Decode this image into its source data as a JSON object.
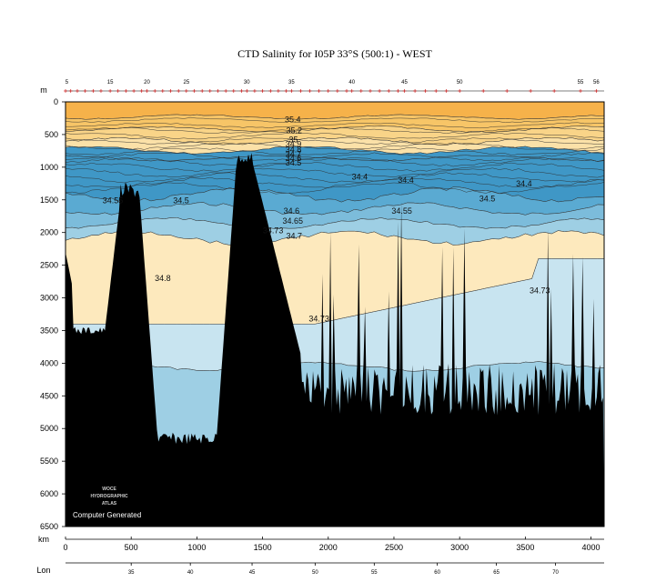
{
  "chart_data": {
    "type": "contour_section",
    "title": "CTD Salinity for I05P 33°S (500:1) - WEST",
    "x_axis": {
      "label": "km",
      "range": [
        0,
        4100
      ],
      "ticks": [
        0,
        500,
        1000,
        1500,
        2000,
        2500,
        3000,
        3500,
        4000
      ]
    },
    "y_axis": {
      "label": "m",
      "range": [
        0,
        6500
      ],
      "ticks": [
        0,
        500,
        1000,
        1500,
        2000,
        2500,
        3000,
        3500,
        4000,
        4500,
        5000,
        5500,
        6000,
        6500
      ],
      "reversed": true
    },
    "lon_axis": {
      "label": "Lon",
      "ticks": [
        {
          "label": "35",
          "km": 500
        },
        {
          "label": "40",
          "km": 950
        },
        {
          "label": "45",
          "km": 1420
        },
        {
          "label": "50",
          "km": 1900
        },
        {
          "label": "55",
          "km": 2350
        },
        {
          "label": "60",
          "km": 2830
        },
        {
          "label": "65",
          "km": 3280
        },
        {
          "label": "70",
          "km": 3730
        }
      ]
    },
    "station_labels": [
      {
        "label": "5",
        "km": 10
      },
      {
        "label": "15",
        "km": 340
      },
      {
        "label": "20",
        "km": 620
      },
      {
        "label": "25",
        "km": 920
      },
      {
        "label": "30",
        "km": 1380
      },
      {
        "label": "35",
        "km": 1720
      },
      {
        "label": "40",
        "km": 2180
      },
      {
        "label": "45",
        "km": 2580
      },
      {
        "label": "50",
        "km": 3000
      },
      {
        "label": "55",
        "km": 3920
      },
      {
        "label": "56",
        "km": 4040
      }
    ],
    "station_km": [
      0,
      40,
      90,
      150,
      210,
      270,
      340,
      400,
      460,
      520,
      580,
      620,
      680,
      740,
      800,
      860,
      920,
      980,
      1040,
      1100,
      1160,
      1220,
      1280,
      1340,
      1380,
      1440,
      1500,
      1560,
      1620,
      1680,
      1720,
      1790,
      1860,
      1930,
      2000,
      2070,
      2140,
      2180,
      2250,
      2320,
      2390,
      2460,
      2530,
      2580,
      2660,
      2740,
      2820,
      2900,
      3000,
      3180,
      3360,
      3540,
      3720,
      3920,
      4040
    ],
    "salinity_levels": [
      34.4,
      34.5,
      34.55,
      34.6,
      34.65,
      34.7,
      34.73,
      34.8,
      35.0,
      35.2,
      35.4
    ],
    "contour_labels": [
      {
        "text": "35.4",
        "km": 1730,
        "depth": 270
      },
      {
        "text": "35.2",
        "km": 1740,
        "depth": 440
      },
      {
        "text": "35",
        "km": 1735,
        "depth": 580
      },
      {
        "text": "34.9",
        "km": 1735,
        "depth": 650
      },
      {
        "text": "34.8",
        "km": 1735,
        "depth": 730
      },
      {
        "text": "34.7",
        "km": 1735,
        "depth": 800
      },
      {
        "text": "34.6",
        "km": 1735,
        "depth": 860
      },
      {
        "text": "34.5",
        "km": 1735,
        "depth": 930
      },
      {
        "text": "34.4",
        "km": 2240,
        "depth": 1150
      },
      {
        "text": "34.4",
        "km": 2590,
        "depth": 1200
      },
      {
        "text": "34.4",
        "km": 3490,
        "depth": 1250
      },
      {
        "text": "34.55",
        "km": 360,
        "depth": 1510
      },
      {
        "text": "34.5",
        "km": 880,
        "depth": 1510
      },
      {
        "text": "34.5",
        "km": 3210,
        "depth": 1480
      },
      {
        "text": "34.6",
        "km": 1720,
        "depth": 1670
      },
      {
        "text": "34.65",
        "km": 1730,
        "depth": 1820
      },
      {
        "text": "34.55",
        "km": 2560,
        "depth": 1670
      },
      {
        "text": "34.73",
        "km": 1580,
        "depth": 1970
      },
      {
        "text": "34.7",
        "km": 1740,
        "depth": 2050
      },
      {
        "text": "34.8",
        "km": 740,
        "depth": 2700
      },
      {
        "text": "34.73",
        "km": 3610,
        "depth": 2890
      },
      {
        "text": "34.73",
        "km": 1930,
        "depth": 3320
      }
    ],
    "credit": "Computer Generated",
    "logo_text": [
      "WOCE",
      "HYDROGRAPHIC",
      "ATLAS"
    ],
    "colors": {
      "s35_4": "#f6b24a",
      "s35_2": "#f7c567",
      "s35_0": "#f9d488",
      "s34_9": "#fbe1a8",
      "s34_8": "#fde9bd",
      "s34_73": "#c8e4f0",
      "s34_7": "#9ecfe4",
      "s34_65": "#7cbcdb",
      "s34_6": "#5aaad2",
      "s34_5": "#3f97c6",
      "bottom": "#000000"
    }
  }
}
